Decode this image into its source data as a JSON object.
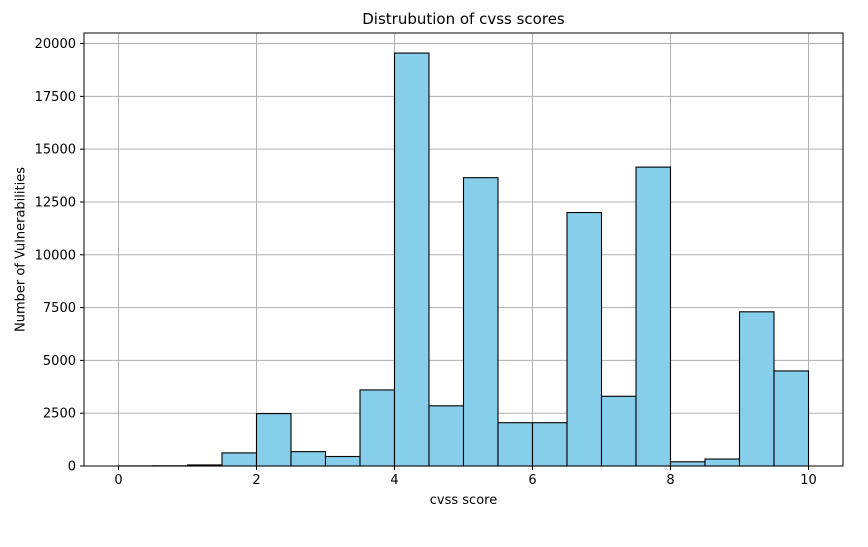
{
  "chart_data": {
    "type": "bar",
    "title": "Distrubution of cvss scores",
    "xlabel": "cvss score",
    "ylabel": "Number of Vulnerabilities",
    "xlim": [
      -0.5,
      10.5
    ],
    "ylim": [
      0,
      20500
    ],
    "xticks": [
      0,
      2,
      4,
      6,
      8,
      10
    ],
    "yticks": [
      0,
      2500,
      5000,
      7500,
      10000,
      12500,
      15000,
      17500,
      20000
    ],
    "grid": true,
    "bar_color": "#87CEEB",
    "edge_color": "#000000",
    "bins": [
      {
        "x0": 0.0,
        "x1": 0.5,
        "value": 5
      },
      {
        "x0": 0.5,
        "x1": 1.0,
        "value": 10
      },
      {
        "x0": 1.0,
        "x1": 1.5,
        "value": 50
      },
      {
        "x0": 1.5,
        "x1": 2.0,
        "value": 620
      },
      {
        "x0": 2.0,
        "x1": 2.5,
        "value": 2480
      },
      {
        "x0": 2.5,
        "x1": 3.0,
        "value": 680
      },
      {
        "x0": 3.0,
        "x1": 3.5,
        "value": 450
      },
      {
        "x0": 3.5,
        "x1": 4.0,
        "value": 3600
      },
      {
        "x0": 4.0,
        "x1": 4.5,
        "value": 19550
      },
      {
        "x0": 4.5,
        "x1": 5.0,
        "value": 2850
      },
      {
        "x0": 5.0,
        "x1": 5.5,
        "value": 13650
      },
      {
        "x0": 5.5,
        "x1": 6.0,
        "value": 2050
      },
      {
        "x0": 6.0,
        "x1": 6.5,
        "value": 2050
      },
      {
        "x0": 6.5,
        "x1": 7.0,
        "value": 12000
      },
      {
        "x0": 7.0,
        "x1": 7.5,
        "value": 3300
      },
      {
        "x0": 7.5,
        "x1": 8.0,
        "value": 14150
      },
      {
        "x0": 8.0,
        "x1": 8.5,
        "value": 200
      },
      {
        "x0": 8.5,
        "x1": 9.0,
        "value": 330
      },
      {
        "x0": 9.0,
        "x1": 9.5,
        "value": 7300
      },
      {
        "x0": 9.5,
        "x1": 10.0,
        "value": 4500
      }
    ]
  }
}
